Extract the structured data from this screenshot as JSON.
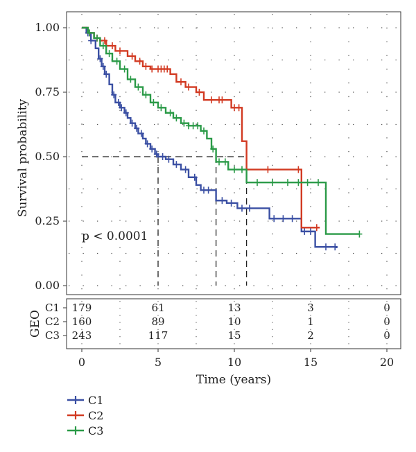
{
  "chart_data": {
    "type": "line",
    "subtype": "kaplan-meier",
    "title": "",
    "xlabel": "Time (years)",
    "ylabel": "Survival probability",
    "xlim": [
      0,
      20
    ],
    "ylim": [
      0,
      1
    ],
    "x_ticks": [
      "0",
      "5",
      "10",
      "15",
      "20"
    ],
    "y_ticks": [
      "0.00",
      "0.25",
      "0.50",
      "0.75",
      "1.00"
    ],
    "grid": "dotted",
    "annotation": "p < 0.0001",
    "median_line": {
      "y": 0.5,
      "x_end": 10.8,
      "medians": [
        5.0,
        8.8,
        10.8
      ]
    },
    "series": [
      {
        "name": "C1",
        "color": "#3a4fa3",
        "points": [
          [
            0,
            1.0
          ],
          [
            0.3,
            0.98
          ],
          [
            0.6,
            0.95
          ],
          [
            0.9,
            0.92
          ],
          [
            1.1,
            0.88
          ],
          [
            1.3,
            0.85
          ],
          [
            1.5,
            0.82
          ],
          [
            1.8,
            0.78
          ],
          [
            2.0,
            0.74
          ],
          [
            2.2,
            0.71
          ],
          [
            2.5,
            0.69
          ],
          [
            2.8,
            0.67
          ],
          [
            3.0,
            0.65
          ],
          [
            3.2,
            0.63
          ],
          [
            3.5,
            0.61
          ],
          [
            3.7,
            0.59
          ],
          [
            4.0,
            0.57
          ],
          [
            4.2,
            0.55
          ],
          [
            4.5,
            0.53
          ],
          [
            4.8,
            0.51
          ],
          [
            5.0,
            0.5
          ],
          [
            5.5,
            0.49
          ],
          [
            6.0,
            0.47
          ],
          [
            6.5,
            0.45
          ],
          [
            7.0,
            0.42
          ],
          [
            7.5,
            0.39
          ],
          [
            7.8,
            0.37
          ],
          [
            8.5,
            0.37
          ],
          [
            8.8,
            0.33
          ],
          [
            9.5,
            0.32
          ],
          [
            10.2,
            0.3
          ],
          [
            11.5,
            0.3
          ],
          [
            12.3,
            0.26
          ],
          [
            14.4,
            0.26
          ],
          [
            14.4,
            0.21
          ],
          [
            15.2,
            0.21
          ],
          [
            15.3,
            0.15
          ],
          [
            16.0,
            0.15
          ],
          [
            16.7,
            0.145
          ]
        ],
        "censor_x": [
          0.4,
          0.6,
          1.2,
          1.4,
          1.6,
          2.1,
          2.4,
          2.6,
          2.9,
          3.3,
          3.6,
          3.9,
          4.3,
          4.6,
          4.9,
          5.3,
          5.7,
          6.2,
          6.8,
          7.4,
          8.0,
          8.3,
          9.2,
          9.8,
          10.5,
          11.0,
          12.6,
          13.2,
          13.8,
          14.6,
          15.0,
          16.0,
          16.6
        ]
      },
      {
        "name": "C2",
        "color": "#d23a22",
        "points": [
          [
            0,
            1.0
          ],
          [
            0.4,
            0.98
          ],
          [
            0.8,
            0.96
          ],
          [
            1.2,
            0.95
          ],
          [
            1.6,
            0.93
          ],
          [
            2.2,
            0.91
          ],
          [
            3.0,
            0.89
          ],
          [
            3.5,
            0.87
          ],
          [
            4.0,
            0.85
          ],
          [
            4.5,
            0.84
          ],
          [
            5.5,
            0.84
          ],
          [
            5.8,
            0.82
          ],
          [
            6.2,
            0.79
          ],
          [
            6.8,
            0.77
          ],
          [
            7.5,
            0.75
          ],
          [
            8.0,
            0.72
          ],
          [
            9.5,
            0.72
          ],
          [
            9.8,
            0.69
          ],
          [
            10.5,
            0.69
          ],
          [
            10.5,
            0.56
          ],
          [
            10.8,
            0.56
          ],
          [
            10.8,
            0.45
          ],
          [
            14.4,
            0.45
          ],
          [
            14.4,
            0.225
          ],
          [
            15.6,
            0.225
          ]
        ],
        "censor_x": [
          0.5,
          1.0,
          1.5,
          2.0,
          2.5,
          3.3,
          3.8,
          4.2,
          4.6,
          5.0,
          5.2,
          5.4,
          5.6,
          6.5,
          7.0,
          7.7,
          8.5,
          9.0,
          9.2,
          10.0,
          10.3,
          12.2,
          14.2,
          15.4
        ]
      },
      {
        "name": "C3",
        "color": "#2a9a47",
        "points": [
          [
            0,
            1.0
          ],
          [
            0.4,
            0.98
          ],
          [
            0.8,
            0.96
          ],
          [
            1.2,
            0.93
          ],
          [
            1.6,
            0.9
          ],
          [
            2.0,
            0.87
          ],
          [
            2.5,
            0.84
          ],
          [
            3.0,
            0.8
          ],
          [
            3.5,
            0.77
          ],
          [
            4.0,
            0.74
          ],
          [
            4.5,
            0.71
          ],
          [
            5.0,
            0.69
          ],
          [
            5.5,
            0.67
          ],
          [
            6.0,
            0.65
          ],
          [
            6.5,
            0.63
          ],
          [
            7.0,
            0.62
          ],
          [
            7.5,
            0.62
          ],
          [
            7.8,
            0.6
          ],
          [
            8.2,
            0.57
          ],
          [
            8.5,
            0.53
          ],
          [
            8.8,
            0.5
          ],
          [
            8.8,
            0.48
          ],
          [
            9.3,
            0.48
          ],
          [
            9.6,
            0.45
          ],
          [
            10.8,
            0.45
          ],
          [
            10.8,
            0.4
          ],
          [
            16.0,
            0.4
          ],
          [
            16.0,
            0.2
          ],
          [
            18.2,
            0.2
          ]
        ],
        "censor_x": [
          0.5,
          1.0,
          1.4,
          1.8,
          2.3,
          2.8,
          3.2,
          3.7,
          4.2,
          4.7,
          5.2,
          5.8,
          6.2,
          6.7,
          7.0,
          7.3,
          7.6,
          8.0,
          8.6,
          9.0,
          9.4,
          10.0,
          10.5,
          11.5,
          12.5,
          13.5,
          14.2,
          14.8,
          15.5,
          18.2
        ]
      }
    ]
  },
  "risk_table": {
    "label": "GEO",
    "groups": [
      "C1",
      "C2",
      "C3"
    ],
    "times": [
      0,
      5,
      10,
      15,
      20
    ],
    "counts": [
      [
        "179",
        "61",
        "13",
        "3",
        "0"
      ],
      [
        "160",
        "89",
        "10",
        "1",
        "0"
      ],
      [
        "243",
        "117",
        "15",
        "2",
        "0"
      ]
    ]
  },
  "legend": {
    "items": [
      {
        "label": "C1",
        "color": "#3a4fa3"
      },
      {
        "label": "C2",
        "color": "#d23a22"
      },
      {
        "label": "C3",
        "color": "#2a9a47"
      }
    ]
  }
}
